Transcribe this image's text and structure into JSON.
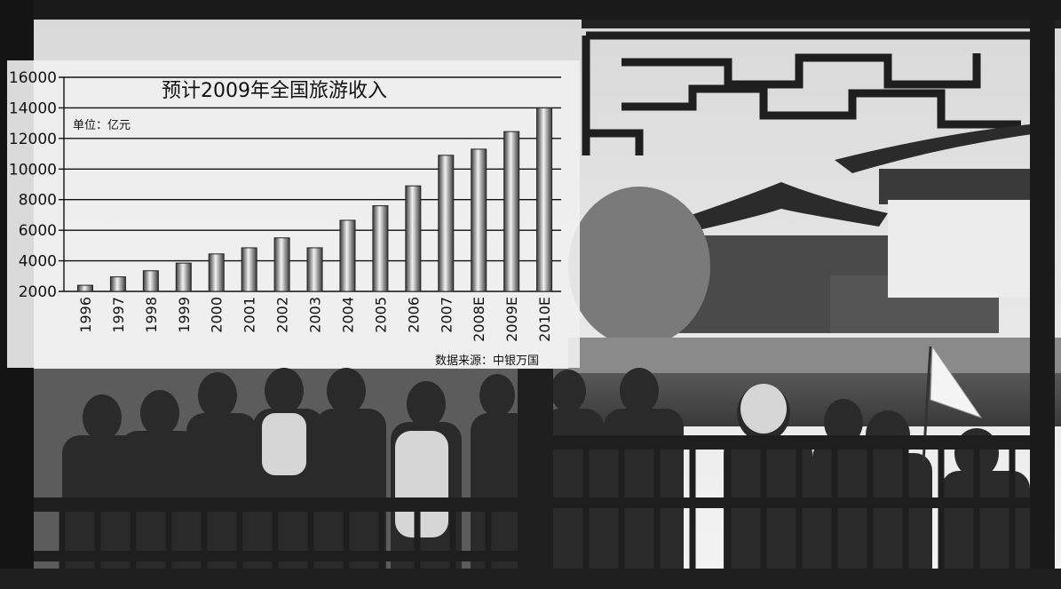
{
  "chart_data": {
    "type": "bar",
    "title": "预计2009年全国旅游收入",
    "unit_label": "单位：亿元",
    "source_label": "数据来源：中银万国",
    "categories": [
      "1996",
      "1997",
      "1998",
      "1999",
      "2000",
      "2001",
      "2002",
      "2003",
      "2004",
      "2005",
      "2006",
      "2007",
      "2008E",
      "2009E",
      "2010E"
    ],
    "values": [
      2400,
      2950,
      3350,
      3850,
      4450,
      4850,
      5500,
      4850,
      6650,
      7600,
      8900,
      10900,
      11300,
      12450,
      14000
    ],
    "yticks": [
      "2000",
      "4000",
      "6000",
      "8000",
      "10000",
      "12000",
      "14000",
      "16000"
    ],
    "ylim": [
      2000,
      16000
    ],
    "grid": true,
    "colors": {
      "bar_dark": "#3a3a3a",
      "bar_light": "#f2f2f2",
      "grid": "#111111"
    }
  }
}
